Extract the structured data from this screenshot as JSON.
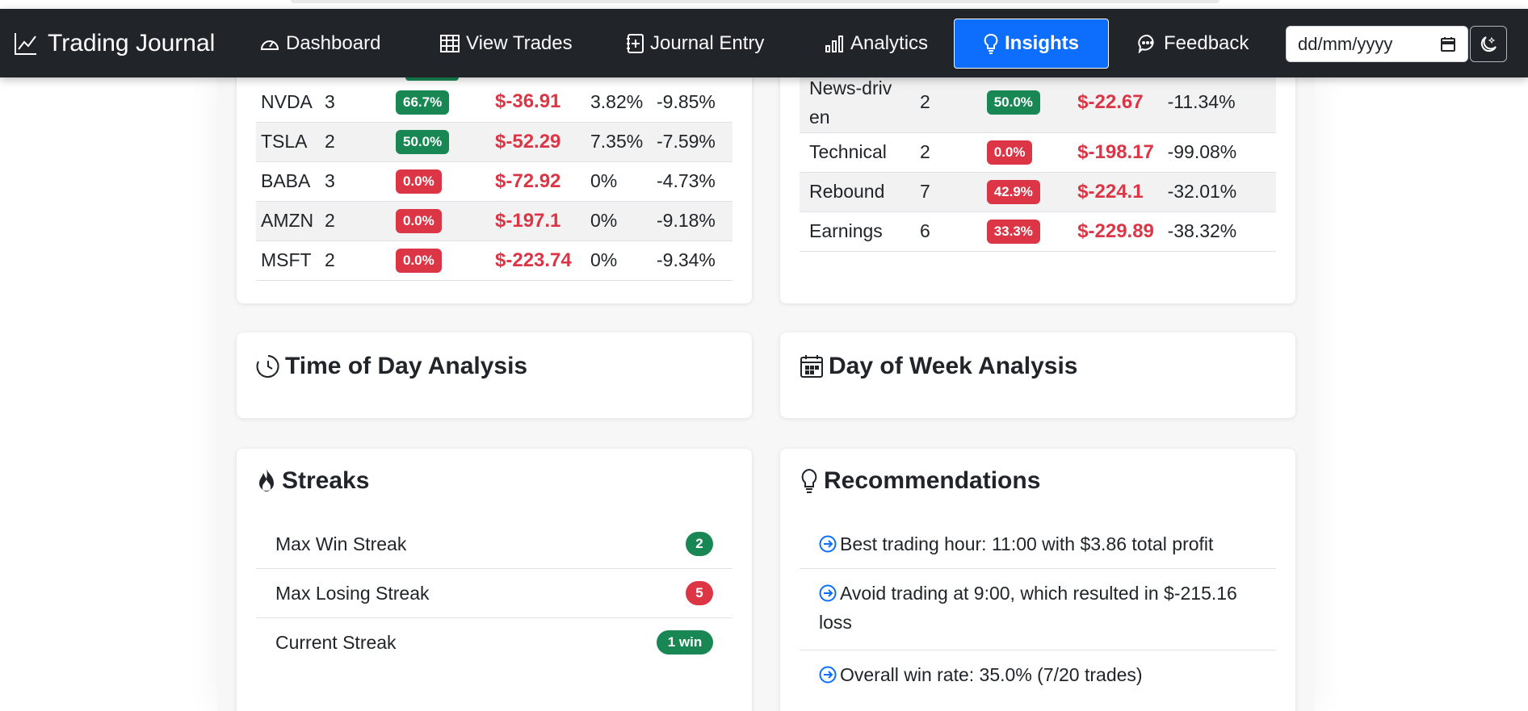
{
  "navbar": {
    "brand": "Trading Journal",
    "items": [
      {
        "label": "Dashboard"
      },
      {
        "label": "View Trades"
      },
      {
        "label": "Journal Entry"
      },
      {
        "label": "Analytics"
      },
      {
        "label": "Insights"
      },
      {
        "label": "Feedback"
      }
    ],
    "active": "Insights",
    "date_placeholder": "dd/mm/yyyy"
  },
  "symbol_table": {
    "rows": [
      {
        "symbol": "NVDA",
        "trades": "3",
        "win_rate": "66.7%",
        "pnl": "$-36.91",
        "best": "3.82%",
        "worst": "-9.85%",
        "win_color": "#198754"
      },
      {
        "symbol": "TSLA",
        "trades": "2",
        "win_rate": "50.0%",
        "pnl": "$-52.29",
        "best": "7.35%",
        "worst": "-7.59%",
        "win_color": "#198754"
      },
      {
        "symbol": "BABA",
        "trades": "3",
        "win_rate": "0.0%",
        "pnl": "$-72.92",
        "best": "0%",
        "worst": "-4.73%",
        "win_color": "#dc3545"
      },
      {
        "symbol": "AMZN",
        "trades": "2",
        "win_rate": "0.0%",
        "pnl": "$-197.1",
        "best": "0%",
        "worst": "-9.18%",
        "win_color": "#dc3545"
      },
      {
        "symbol": "MSFT",
        "trades": "2",
        "win_rate": "0.0%",
        "pnl": "$-223.74",
        "best": "0%",
        "worst": "-9.34%",
        "win_color": "#dc3545"
      }
    ]
  },
  "strategy_table": {
    "rows": [
      {
        "strategy": "News-driven",
        "trades": "2",
        "win_rate": "50.0%",
        "pnl": "$-22.67",
        "avg": "-11.34%",
        "win_color": "#198754"
      },
      {
        "strategy": "Technical",
        "trades": "2",
        "win_rate": "0.0%",
        "pnl": "$-198.17",
        "avg": "-99.08%",
        "win_color": "#dc3545"
      },
      {
        "strategy": "Rebound",
        "trades": "7",
        "win_rate": "42.9%",
        "pnl": "$-224.1",
        "avg": "-32.01%",
        "win_color": "#dc3545"
      },
      {
        "strategy": "Earnings",
        "trades": "6",
        "win_rate": "33.3%",
        "pnl": "$-229.89",
        "avg": "-38.32%",
        "win_color": "#dc3545"
      }
    ]
  },
  "time_of_day": {
    "title": "Time of Day Analysis"
  },
  "day_of_week": {
    "title": "Day of Week Analysis"
  },
  "streaks": {
    "title": "Streaks",
    "items": [
      {
        "label": "Max Win Streak",
        "value": "2",
        "color": "#198754"
      },
      {
        "label": "Max Losing Streak",
        "value": "5",
        "color": "#dc3545"
      },
      {
        "label": "Current Streak",
        "value": "1 win",
        "color": "#198754"
      }
    ]
  },
  "recommendations": {
    "title": "Recommendations",
    "items": [
      {
        "text": "Best trading hour: 11:00 with $3.86 total profit"
      },
      {
        "text": "Avoid trading at 9:00, which resulted in $-215.16 loss"
      },
      {
        "text": "Overall win rate: 35.0% (7/20 trades)"
      }
    ]
  }
}
